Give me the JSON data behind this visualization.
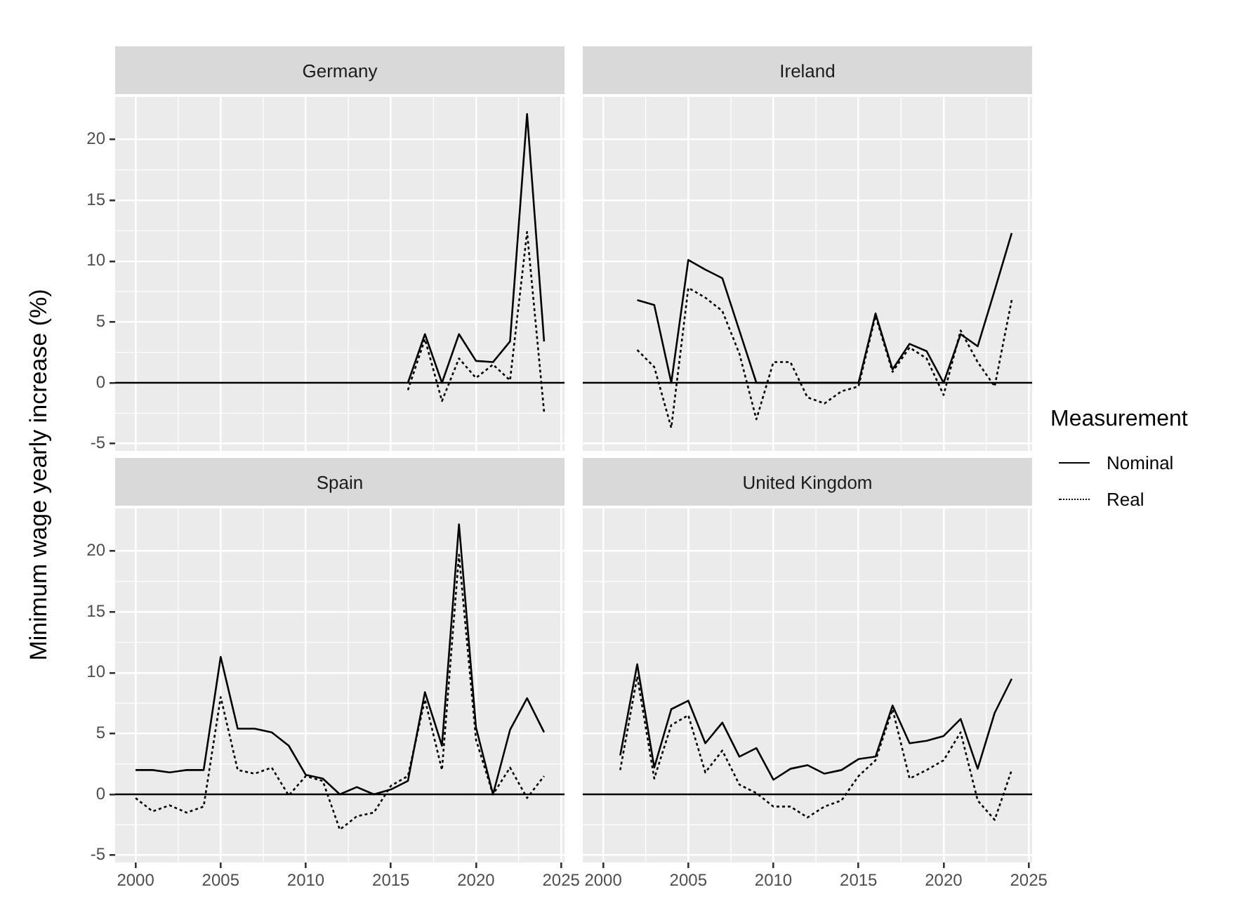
{
  "chart_data": [
    {
      "type": "line",
      "title": "Germany",
      "ylabel": "Minimum wage yearly increase (%)",
      "x": [
        2016,
        2017,
        2018,
        2019,
        2020,
        2021,
        2022,
        2023,
        2024
      ],
      "xlim": [
        1998.8,
        2025.2
      ],
      "xticks": [
        2000,
        2005,
        2010,
        2015,
        2020,
        2025
      ],
      "ylim": [
        -5.6,
        23.5
      ],
      "yticks": [
        -5,
        0,
        5,
        10,
        15,
        20
      ],
      "grid": true,
      "tick_labels": "y",
      "ref_lines": [
        {
          "axis": "y",
          "value": 0,
          "color": "#000000"
        }
      ],
      "series": [
        {
          "color": "#000000",
          "line_style": "solid",
          "values": [
            0,
            4.0,
            0,
            4.0,
            1.8,
            1.7,
            3.4,
            22.1,
            3.4
          ]
        },
        {
          "color": "#000000",
          "line_style": "dotted",
          "values": [
            -0.6,
            3.6,
            -1.5,
            2.0,
            0.4,
            1.5,
            0.2,
            12.4,
            -2.4
          ]
        }
      ]
    },
    {
      "type": "line",
      "title": "Ireland",
      "legend_title": "Measurement",
      "x": [
        2002,
        2003,
        2004,
        2005,
        2006,
        2007,
        2008,
        2009,
        2010,
        2011,
        2012,
        2013,
        2014,
        2015,
        2016,
        2017,
        2018,
        2019,
        2020,
        2021,
        2022,
        2023,
        2024
      ],
      "xlim": [
        1998.8,
        2025.2
      ],
      "xticks": [
        2000,
        2005,
        2010,
        2015,
        2020,
        2025
      ],
      "ylim": [
        -5.6,
        23.5
      ],
      "yticks": [
        -5,
        0,
        5,
        10,
        15,
        20
      ],
      "grid": true,
      "tick_labels": false,
      "legend": "right",
      "ref_lines": [
        {
          "axis": "y",
          "value": 0,
          "color": "#000000"
        }
      ],
      "series": [
        {
          "name": "Nominal",
          "color": "#000000",
          "line_style": "solid",
          "values": [
            6.8,
            6.4,
            0,
            10.1,
            9.3,
            8.6,
            4.3,
            0,
            0,
            0,
            0,
            0,
            0,
            0,
            5.7,
            1.1,
            3.2,
            2.6,
            0,
            4.0,
            3.0,
            7.6,
            12.3
          ]
        },
        {
          "name": "Real",
          "color": "#000000",
          "line_style": "dotted",
          "values": [
            2.7,
            1.3,
            -3.7,
            7.8,
            7.0,
            5.9,
            2.4,
            -3.0,
            1.7,
            1.7,
            -1.2,
            -1.7,
            -0.7,
            -0.3,
            5.5,
            0.9,
            2.9,
            2.0,
            -1.0,
            4.3,
            1.7,
            -0.3,
            6.8
          ]
        }
      ]
    },
    {
      "type": "line",
      "title": "Spain",
      "x": [
        2000,
        2001,
        2002,
        2003,
        2004,
        2005,
        2006,
        2007,
        2008,
        2009,
        2010,
        2011,
        2012,
        2013,
        2014,
        2015,
        2016,
        2017,
        2018,
        2019,
        2020,
        2021,
        2022,
        2023,
        2024
      ],
      "xlim": [
        1998.8,
        2025.2
      ],
      "xticks": [
        2000,
        2005,
        2010,
        2015,
        2020,
        2025
      ],
      "ylim": [
        -5.6,
        23.5
      ],
      "yticks": [
        -5,
        0,
        5,
        10,
        15,
        20
      ],
      "grid": true,
      "ref_lines": [
        {
          "axis": "y",
          "value": 0,
          "color": "#000000"
        }
      ],
      "series": [
        {
          "color": "#000000",
          "line_style": "solid",
          "values": [
            2.0,
            2.0,
            1.8,
            2.0,
            2.0,
            11.3,
            5.4,
            5.4,
            5.1,
            4.0,
            1.6,
            1.3,
            0,
            0.6,
            0,
            0.4,
            1.1,
            8.4,
            4.0,
            22.2,
            5.5,
            0,
            5.3,
            7.9,
            5.1
          ]
        },
        {
          "color": "#000000",
          "line_style": "dotted",
          "values": [
            -0.3,
            -1.4,
            -0.9,
            -1.5,
            -1.0,
            8.0,
            2.0,
            1.7,
            2.2,
            -0.1,
            1.5,
            1.1,
            -2.9,
            -1.8,
            -1.5,
            0.7,
            1.5,
            7.8,
            2.0,
            19.7,
            4.5,
            0,
            2.2,
            -0.3,
            1.5
          ]
        }
      ]
    },
    {
      "type": "line",
      "title": "United Kingdom",
      "x": [
        2001,
        2002,
        2003,
        2004,
        2005,
        2006,
        2007,
        2008,
        2009,
        2010,
        2011,
        2012,
        2013,
        2014,
        2015,
        2016,
        2017,
        2018,
        2019,
        2020,
        2021,
        2022,
        2023,
        2024
      ],
      "xlim": [
        1998.8,
        2025.2
      ],
      "xticks": [
        2000,
        2005,
        2010,
        2015,
        2020,
        2025
      ],
      "ylim": [
        -5.6,
        23.5
      ],
      "yticks": [
        -5,
        0,
        5,
        10,
        15,
        20
      ],
      "grid": true,
      "tick_labels": "x",
      "ref_lines": [
        {
          "axis": "y",
          "value": 0,
          "color": "#000000"
        }
      ],
      "series": [
        {
          "color": "#000000",
          "line_style": "solid",
          "values": [
            3.2,
            10.7,
            2.2,
            7.0,
            7.7,
            4.2,
            5.9,
            3.1,
            3.8,
            1.2,
            2.1,
            2.4,
            1.7,
            2.0,
            2.9,
            3.1,
            7.3,
            4.2,
            4.4,
            4.8,
            6.2,
            2.1,
            6.7,
            9.5
          ]
        },
        {
          "color": "#000000",
          "line_style": "dotted",
          "values": [
            2.0,
            9.7,
            1.3,
            5.7,
            6.5,
            1.8,
            3.6,
            0.8,
            0.1,
            -1.0,
            -1.0,
            -1.9,
            -1.0,
            -0.5,
            1.5,
            2.8,
            7.0,
            1.3,
            2.0,
            2.8,
            5.1,
            -0.5,
            -2.1,
            2.0
          ]
        }
      ]
    }
  ]
}
